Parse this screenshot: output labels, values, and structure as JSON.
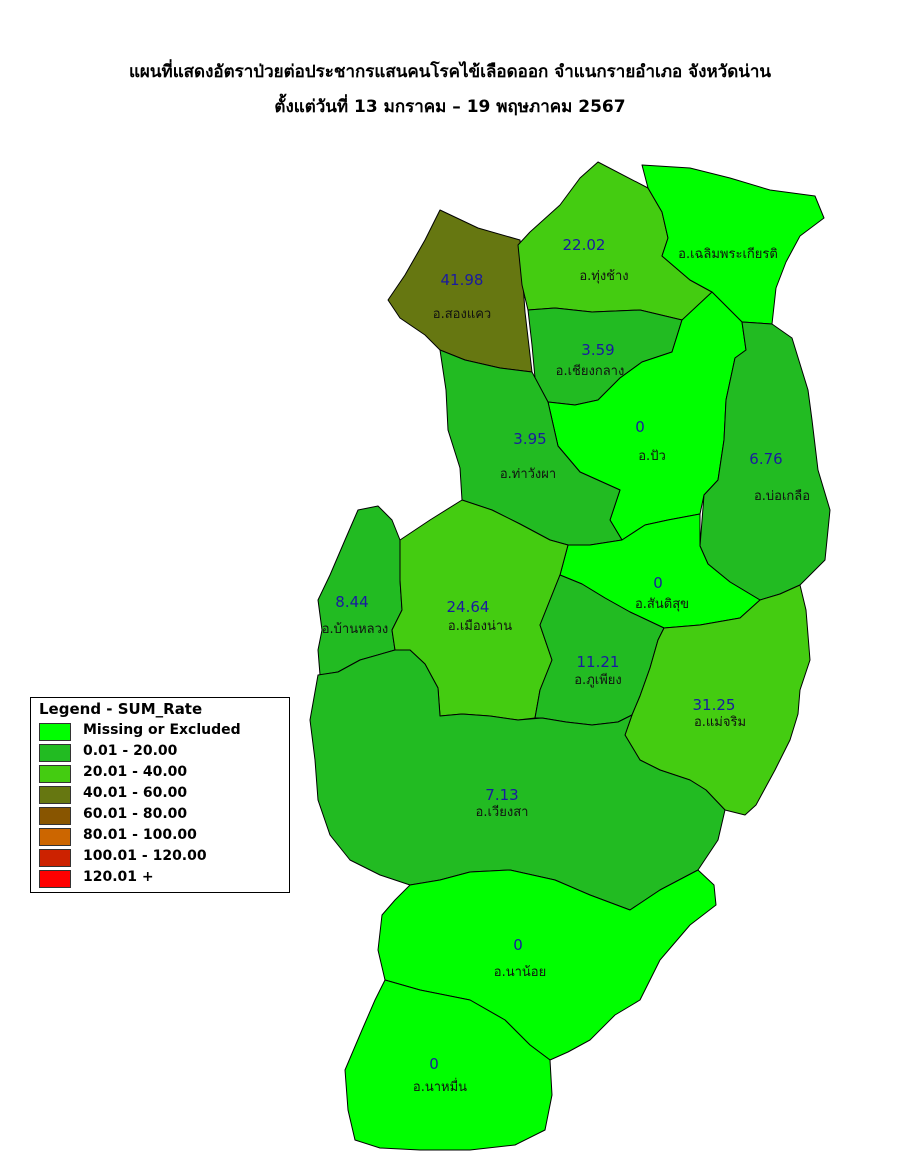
{
  "title": {
    "line1": "แผนที่แสดงอัตราป่วยต่อประชากรแสนคนโรคไข้เลือดออก จำแนกรายอำเภอ จังหวัดน่าน",
    "line2": "ตั้งแต่วันที่ 13 มกราคม – 19 พฤษภาคม 2567"
  },
  "legend": {
    "title": "Legend - SUM_Rate",
    "items": [
      {
        "label": "Missing or Excluded",
        "color": "#00ff00"
      },
      {
        "label": "0.01 - 20.00",
        "color": "#22bb22"
      },
      {
        "label": "20.01 - 40.00",
        "color": "#44cc11"
      },
      {
        "label": "40.01 - 60.00",
        "color": "#667711"
      },
      {
        "label": "60.01 - 80.00",
        "color": "#885500"
      },
      {
        "label": "80.01 - 100.00",
        "color": "#cc6600"
      },
      {
        "label": "100.01 - 120.00",
        "color": "#cc2200"
      },
      {
        "label": "120.01 +",
        "color": "#ff0000"
      }
    ]
  },
  "districts": [
    {
      "id": "song-khwae",
      "name": "อ.สองแคว",
      "rate": "41.98",
      "color": "#667711"
    },
    {
      "id": "thung-chang",
      "name": "อ.ทุ่งช้าง",
      "rate": "22.02",
      "color": "#44cc11"
    },
    {
      "id": "chaloem",
      "name": "อ.เฉลิมพระเกียรติ",
      "rate": "",
      "color": "#00ff00"
    },
    {
      "id": "chiang-klang",
      "name": "อ.เชียงกลาง",
      "rate": "3.59",
      "color": "#22bb22"
    },
    {
      "id": "pua",
      "name": "อ.ปัว",
      "rate": "0",
      "color": "#00ff00"
    },
    {
      "id": "tha-wang-pha",
      "name": "อ.ท่าวังผา",
      "rate": "3.95",
      "color": "#22bb22"
    },
    {
      "id": "bo-kluea",
      "name": "อ.บ่อเกลือ",
      "rate": "6.76",
      "color": "#22bb22"
    },
    {
      "id": "santi-suk",
      "name": "อ.สันติสุข",
      "rate": "0",
      "color": "#00ff00"
    },
    {
      "id": "ban-luang",
      "name": "อ.บ้านหลวง",
      "rate": "8.44",
      "color": "#22bb22"
    },
    {
      "id": "mueang-nan",
      "name": "อ.เมืองน่าน",
      "rate": "24.64",
      "color": "#44cc11"
    },
    {
      "id": "phu-phiang",
      "name": "อ.ภูเพียง",
      "rate": "11.21",
      "color": "#22bb22"
    },
    {
      "id": "mae-charim",
      "name": "อ.แม่จริม",
      "rate": "31.25",
      "color": "#44cc11"
    },
    {
      "id": "wiang-sa",
      "name": "อ.เวียงสา",
      "rate": "7.13",
      "color": "#22bb22"
    },
    {
      "id": "na-noi",
      "name": "อ.นาน้อย",
      "rate": "0",
      "color": "#00ff00"
    },
    {
      "id": "na-muen",
      "name": "อ.นาหมื่น",
      "rate": "0",
      "color": "#00ff00"
    }
  ]
}
